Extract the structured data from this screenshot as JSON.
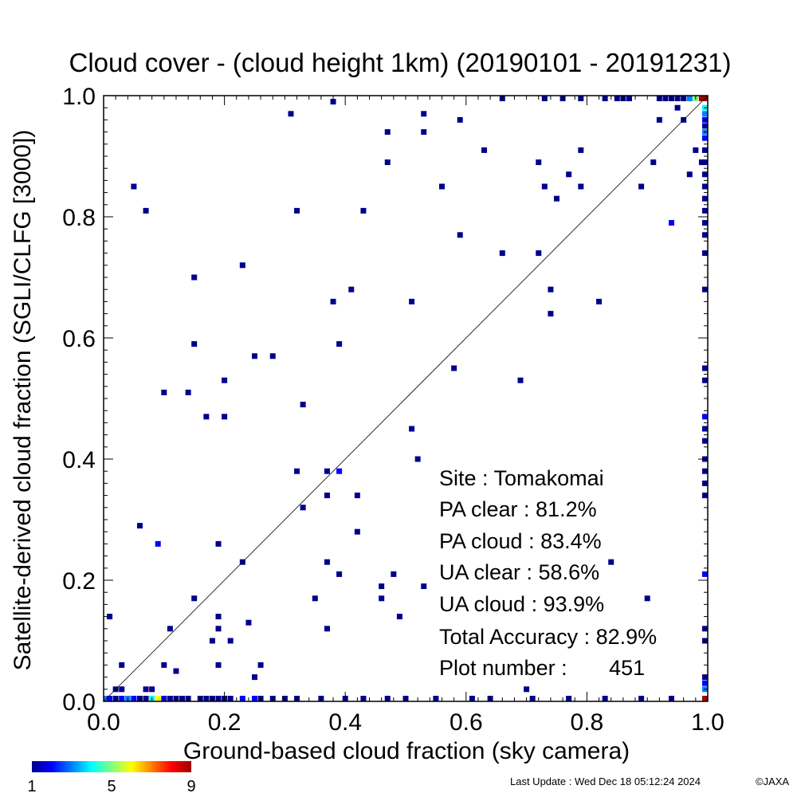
{
  "chart_data": {
    "type": "heatmap",
    "title": "Cloud cover - (cloud height 1km)  (20190101 - 20191231)",
    "xlabel": "Ground-based cloud fraction (sky camera)",
    "ylabel": "Satellite-derived cloud fraction (SGLI/CLFG [3000])",
    "xlim": [
      0.0,
      1.0
    ],
    "ylim": [
      0.0,
      1.0
    ],
    "x_ticks": [
      "0.0",
      "0.2",
      "0.4",
      "0.6",
      "0.8",
      "1.0"
    ],
    "y_ticks": [
      "0.0",
      "0.2",
      "0.4",
      "0.6",
      "0.8",
      "1.0"
    ],
    "grid": false,
    "diagonal_line": true,
    "stats": {
      "site": "Site : Tomakomai",
      "pa_clear": "PA clear :  81.2%",
      "pa_cloud": "PA cloud :  83.4%",
      "ua_clear": "UA clear :  58.6%",
      "ua_cloud": "UA cloud :  93.9%",
      "total_accuracy": "Total Accuracy :  82.9%",
      "plot_number": "Plot number :       451"
    },
    "colorbar": {
      "min_label": "1",
      "mid_label": "5",
      "max_label": "9",
      "colors": [
        "#00008c",
        "#0000ff",
        "#0080ff",
        "#00ffff",
        "#80ff80",
        "#ffff00",
        "#ff8000",
        "#ff0000",
        "#a00000"
      ]
    },
    "cells": [
      [
        0.01,
        0.14,
        1
      ],
      [
        0.03,
        0.06,
        1
      ],
      [
        0.05,
        0.85,
        1
      ],
      [
        0.06,
        0.29,
        1
      ],
      [
        0.07,
        0.81,
        1
      ],
      [
        0.09,
        0.26,
        2
      ],
      [
        0.1,
        0.51,
        1
      ],
      [
        0.1,
        0.06,
        1
      ],
      [
        0.11,
        0.12,
        1
      ],
      [
        0.12,
        0.05,
        1
      ],
      [
        0.14,
        0.51,
        1
      ],
      [
        0.15,
        0.7,
        1
      ],
      [
        0.15,
        0.59,
        1
      ],
      [
        0.15,
        0.17,
        1
      ],
      [
        0.17,
        0.47,
        1
      ],
      [
        0.18,
        0.1,
        1
      ],
      [
        0.19,
        0.26,
        1
      ],
      [
        0.19,
        0.14,
        1
      ],
      [
        0.19,
        0.12,
        1
      ],
      [
        0.19,
        0.06,
        1
      ],
      [
        0.2,
        0.53,
        1
      ],
      [
        0.2,
        0.47,
        1
      ],
      [
        0.21,
        0.1,
        1
      ],
      [
        0.23,
        0.72,
        1
      ],
      [
        0.23,
        0.23,
        1
      ],
      [
        0.24,
        0.13,
        1
      ],
      [
        0.25,
        0.57,
        1
      ],
      [
        0.25,
        0.04,
        1
      ],
      [
        0.26,
        0.06,
        1
      ],
      [
        0.28,
        0.57,
        1
      ],
      [
        0.31,
        0.97,
        1
      ],
      [
        0.32,
        0.81,
        1
      ],
      [
        0.32,
        0.38,
        1
      ],
      [
        0.33,
        0.49,
        1
      ],
      [
        0.33,
        0.32,
        1
      ],
      [
        0.35,
        0.17,
        1
      ],
      [
        0.37,
        0.38,
        1
      ],
      [
        0.37,
        0.34,
        1
      ],
      [
        0.37,
        0.23,
        1
      ],
      [
        0.37,
        0.12,
        1
      ],
      [
        0.38,
        0.99,
        1
      ],
      [
        0.38,
        0.66,
        1
      ],
      [
        0.39,
        0.59,
        1
      ],
      [
        0.39,
        0.38,
        2
      ],
      [
        0.39,
        0.21,
        1
      ],
      [
        0.41,
        0.68,
        1
      ],
      [
        0.42,
        0.34,
        1
      ],
      [
        0.42,
        0.28,
        1
      ],
      [
        0.43,
        0.81,
        1
      ],
      [
        0.46,
        0.19,
        1
      ],
      [
        0.46,
        0.17,
        1
      ],
      [
        0.47,
        0.94,
        1
      ],
      [
        0.47,
        0.89,
        1
      ],
      [
        0.48,
        0.21,
        1
      ],
      [
        0.49,
        0.14,
        1
      ],
      [
        0.51,
        0.66,
        1
      ],
      [
        0.51,
        0.45,
        1
      ],
      [
        0.52,
        0.4,
        1
      ],
      [
        0.53,
        0.97,
        1
      ],
      [
        0.53,
        0.94,
        1
      ],
      [
        0.53,
        0.19,
        1
      ],
      [
        0.56,
        0.85,
        1
      ],
      [
        0.58,
        0.55,
        1
      ],
      [
        0.59,
        0.96,
        1
      ],
      [
        0.59,
        0.77,
        1
      ],
      [
        0.63,
        0.91,
        1
      ],
      [
        0.66,
        0.74,
        1
      ],
      [
        0.69,
        0.53,
        1
      ],
      [
        0.7,
        0.02,
        1
      ],
      [
        0.72,
        0.89,
        1
      ],
      [
        0.72,
        0.74,
        1
      ],
      [
        0.73,
        0.85,
        1
      ],
      [
        0.74,
        0.68,
        1
      ],
      [
        0.74,
        0.64,
        1
      ],
      [
        0.75,
        0.83,
        1
      ],
      [
        0.77,
        0.87,
        1
      ],
      [
        0.79,
        0.91,
        1
      ],
      [
        0.79,
        0.85,
        1
      ],
      [
        0.82,
        0.66,
        1
      ],
      [
        0.84,
        0.23,
        1
      ],
      [
        0.89,
        0.85,
        1
      ],
      [
        0.9,
        0.17,
        1
      ],
      [
        0.91,
        0.89,
        1
      ],
      [
        0.92,
        0.96,
        1
      ],
      [
        0.94,
        0.79,
        2
      ],
      [
        0.95,
        0.98,
        1
      ],
      [
        0.96,
        0.96,
        1
      ],
      [
        0.97,
        0.87,
        1
      ],
      [
        0.98,
        0.91,
        1
      ],
      [
        0.99,
        0.89,
        1
      ],
      [
        0.66,
        1.0,
        1
      ],
      [
        0.73,
        1.0,
        1
      ],
      [
        0.76,
        1.0,
        1
      ],
      [
        0.79,
        1.0,
        1
      ],
      [
        0.83,
        1.0,
        1
      ],
      [
        0.85,
        1.0,
        1
      ],
      [
        0.86,
        1.0,
        1
      ],
      [
        0.87,
        1.0,
        1
      ],
      [
        0.92,
        1.0,
        1
      ],
      [
        0.93,
        1.0,
        1
      ],
      [
        0.94,
        1.0,
        1
      ],
      [
        0.95,
        1.0,
        1
      ],
      [
        0.96,
        1.0,
        1
      ],
      [
        0.97,
        1.0,
        3
      ],
      [
        0.98,
        1.0,
        5
      ],
      [
        0.99,
        1.0,
        9
      ],
      [
        1.0,
        1.0,
        9
      ],
      [
        1.0,
        0.98,
        4
      ],
      [
        1.0,
        0.97,
        3
      ],
      [
        1.0,
        0.96,
        2
      ],
      [
        1.0,
        0.95,
        1
      ],
      [
        1.0,
        0.94,
        3
      ],
      [
        1.0,
        0.93,
        2
      ],
      [
        1.0,
        0.91,
        1
      ],
      [
        1.0,
        0.89,
        1
      ],
      [
        1.0,
        0.87,
        1
      ],
      [
        1.0,
        0.85,
        1
      ],
      [
        1.0,
        0.83,
        1
      ],
      [
        1.0,
        0.81,
        1
      ],
      [
        1.0,
        0.79,
        1
      ],
      [
        1.0,
        0.77,
        1
      ],
      [
        1.0,
        0.74,
        1
      ],
      [
        1.0,
        0.68,
        1
      ],
      [
        1.0,
        0.55,
        1
      ],
      [
        1.0,
        0.53,
        1
      ],
      [
        1.0,
        0.47,
        2
      ],
      [
        1.0,
        0.45,
        1
      ],
      [
        1.0,
        0.43,
        1
      ],
      [
        1.0,
        0.4,
        1
      ],
      [
        1.0,
        0.38,
        1
      ],
      [
        1.0,
        0.36,
        1
      ],
      [
        1.0,
        0.34,
        1
      ],
      [
        1.0,
        0.21,
        2
      ],
      [
        1.0,
        0.12,
        1
      ],
      [
        1.0,
        0.1,
        1
      ],
      [
        1.0,
        0.04,
        1
      ],
      [
        1.0,
        0.03,
        2
      ],
      [
        1.0,
        0.02,
        3
      ],
      [
        1.0,
        0.0,
        9
      ],
      [
        0.0,
        0.0,
        3
      ],
      [
        0.01,
        0.0,
        2
      ],
      [
        0.02,
        0.0,
        1
      ],
      [
        0.02,
        0.02,
        1
      ],
      [
        0.03,
        0.02,
        1
      ],
      [
        0.03,
        0.0,
        2
      ],
      [
        0.04,
        0.0,
        3
      ],
      [
        0.05,
        0.0,
        2
      ],
      [
        0.06,
        0.0,
        1
      ],
      [
        0.07,
        0.0,
        1
      ],
      [
        0.07,
        0.02,
        1
      ],
      [
        0.08,
        0.0,
        4
      ],
      [
        0.08,
        0.02,
        1
      ],
      [
        0.09,
        0.0,
        6
      ],
      [
        0.1,
        0.0,
        2
      ],
      [
        0.11,
        0.0,
        1
      ],
      [
        0.12,
        0.0,
        1
      ],
      [
        0.13,
        0.0,
        1
      ],
      [
        0.14,
        0.0,
        1
      ],
      [
        0.16,
        0.0,
        1
      ],
      [
        0.17,
        0.0,
        1
      ],
      [
        0.18,
        0.0,
        1
      ],
      [
        0.19,
        0.0,
        1
      ],
      [
        0.2,
        0.0,
        1
      ],
      [
        0.21,
        0.0,
        1
      ],
      [
        0.23,
        0.0,
        2
      ],
      [
        0.25,
        0.0,
        2
      ],
      [
        0.26,
        0.0,
        1
      ],
      [
        0.28,
        0.0,
        1
      ],
      [
        0.3,
        0.0,
        1
      ],
      [
        0.32,
        0.0,
        1
      ],
      [
        0.36,
        0.0,
        1
      ],
      [
        0.4,
        0.0,
        1
      ],
      [
        0.43,
        0.0,
        1
      ],
      [
        0.47,
        0.0,
        1
      ],
      [
        0.5,
        0.0,
        1
      ],
      [
        0.55,
        0.0,
        1
      ],
      [
        0.61,
        0.0,
        1
      ],
      [
        0.64,
        0.0,
        1
      ],
      [
        0.71,
        0.0,
        1
      ],
      [
        0.77,
        0.0,
        1
      ],
      [
        0.83,
        0.0,
        1
      ],
      [
        0.89,
        0.0,
        1
      ],
      [
        0.94,
        0.0,
        1
      ]
    ]
  },
  "footer": {
    "last_update": "Last Update : Wed Dec 18 05:12:24 2024",
    "copyright": "©JAXA"
  }
}
